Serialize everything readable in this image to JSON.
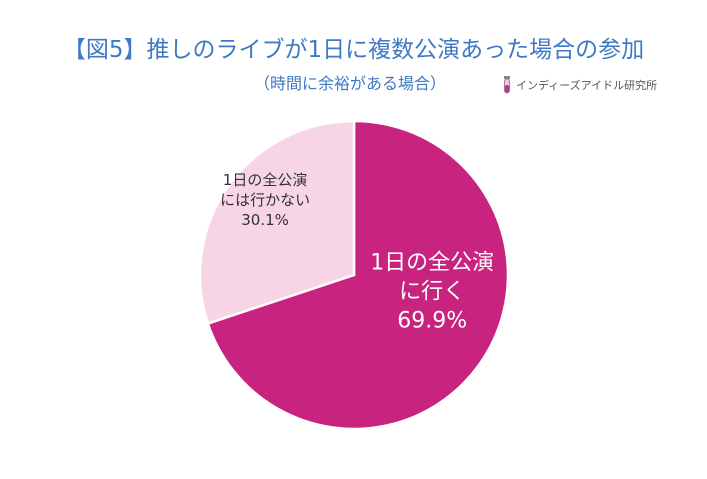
{
  "header": {
    "title": "【図5】推しのライブが1日に複数公演あった場合の参加",
    "subtitle": "（時間に余裕がある場合）",
    "brand": "インディーズアイドル研究所"
  },
  "chart_data": {
    "type": "pie",
    "title": "【図5】推しのライブが1日に複数公演あった場合の参加",
    "subtitle": "（時間に余裕がある場合）",
    "slices": [
      {
        "label_lines": [
          "1日の全公演",
          "に行く"
        ],
        "value": 69.9,
        "value_label": "69.9%",
        "color": "#c8237e",
        "label_color": "#ffffff"
      },
      {
        "label_lines": [
          "1日の全公演",
          "には行かない"
        ],
        "value": 30.1,
        "value_label": "30.1%",
        "color": "#f7d5e7",
        "label_color": "#333333"
      }
    ],
    "start_angle_deg": 0,
    "direction": "clockwise",
    "legend": "none"
  }
}
